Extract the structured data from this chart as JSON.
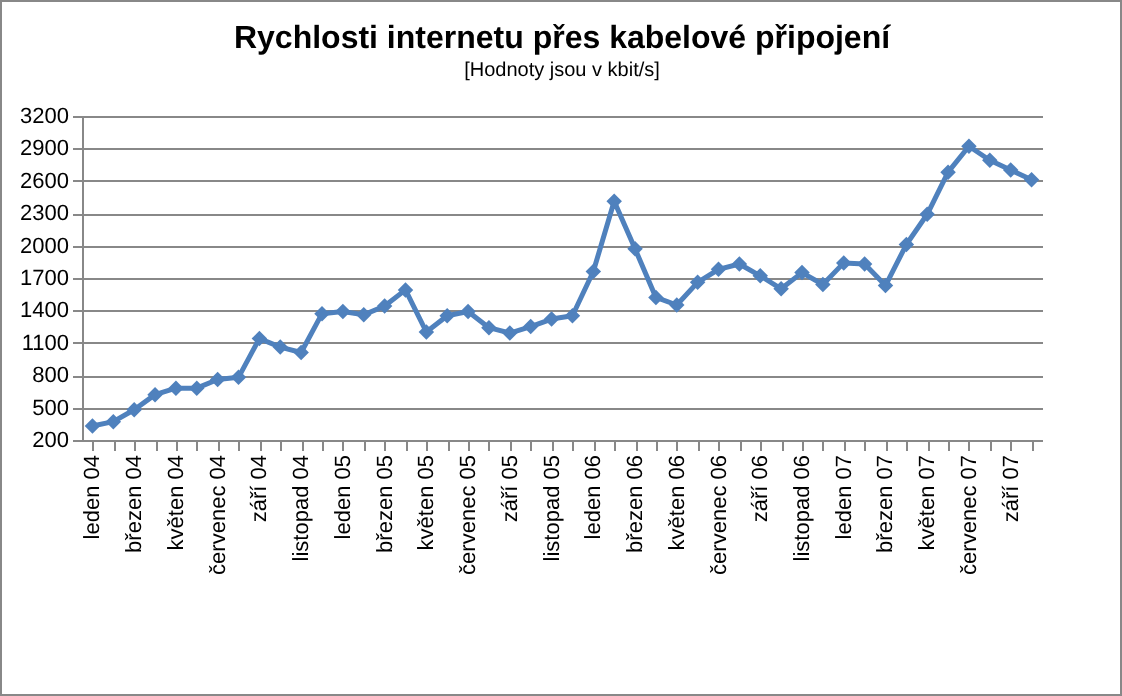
{
  "chart_data": {
    "type": "line",
    "title": "Rychlosti internetu přes kabelové připojení",
    "subtitle": "[Hodnoty jsou v kbit/s]",
    "categories": [
      "leden 04",
      null,
      "březen 04",
      null,
      "květen 04",
      null,
      "červenec 04",
      null,
      "září 04",
      null,
      "listopad 04",
      null,
      "leden 05",
      null,
      "březen 05",
      null,
      "květen 05",
      null,
      "červenec 05",
      null,
      "září 05",
      null,
      "listopad 05",
      null,
      "leden 06",
      null,
      "březen 06",
      null,
      "květen 06",
      null,
      "červenec 06",
      null,
      "září 06",
      null,
      "listopad 06",
      null,
      "leden 07",
      null,
      "březen 07",
      null,
      "květen 07",
      null,
      "červenec 07",
      null,
      "září 07",
      null
    ],
    "series": [
      {
        "color": "#4f81bd",
        "values": [
          330,
          370,
          480,
          620,
          680,
          680,
          760,
          780,
          1140,
          1060,
          1010,
          1370,
          1390,
          1360,
          1440,
          1590,
          1200,
          1350,
          1390,
          1240,
          1190,
          1250,
          1320,
          1350,
          1760,
          2410,
          1970,
          1520,
          1450,
          1660,
          1780,
          1830,
          1720,
          1600,
          1750,
          1640,
          1840,
          1830,
          1630,
          2010,
          2290,
          2680,
          2920,
          2790,
          2700,
          2610
        ]
      }
    ],
    "ylim": [
      200,
      3200
    ],
    "yticks": [
      200,
      500,
      800,
      1100,
      1400,
      1700,
      2000,
      2300,
      2600,
      2900,
      3200
    ],
    "grid": "y",
    "legend": false,
    "marker": "diamond",
    "line_style": "solid"
  }
}
